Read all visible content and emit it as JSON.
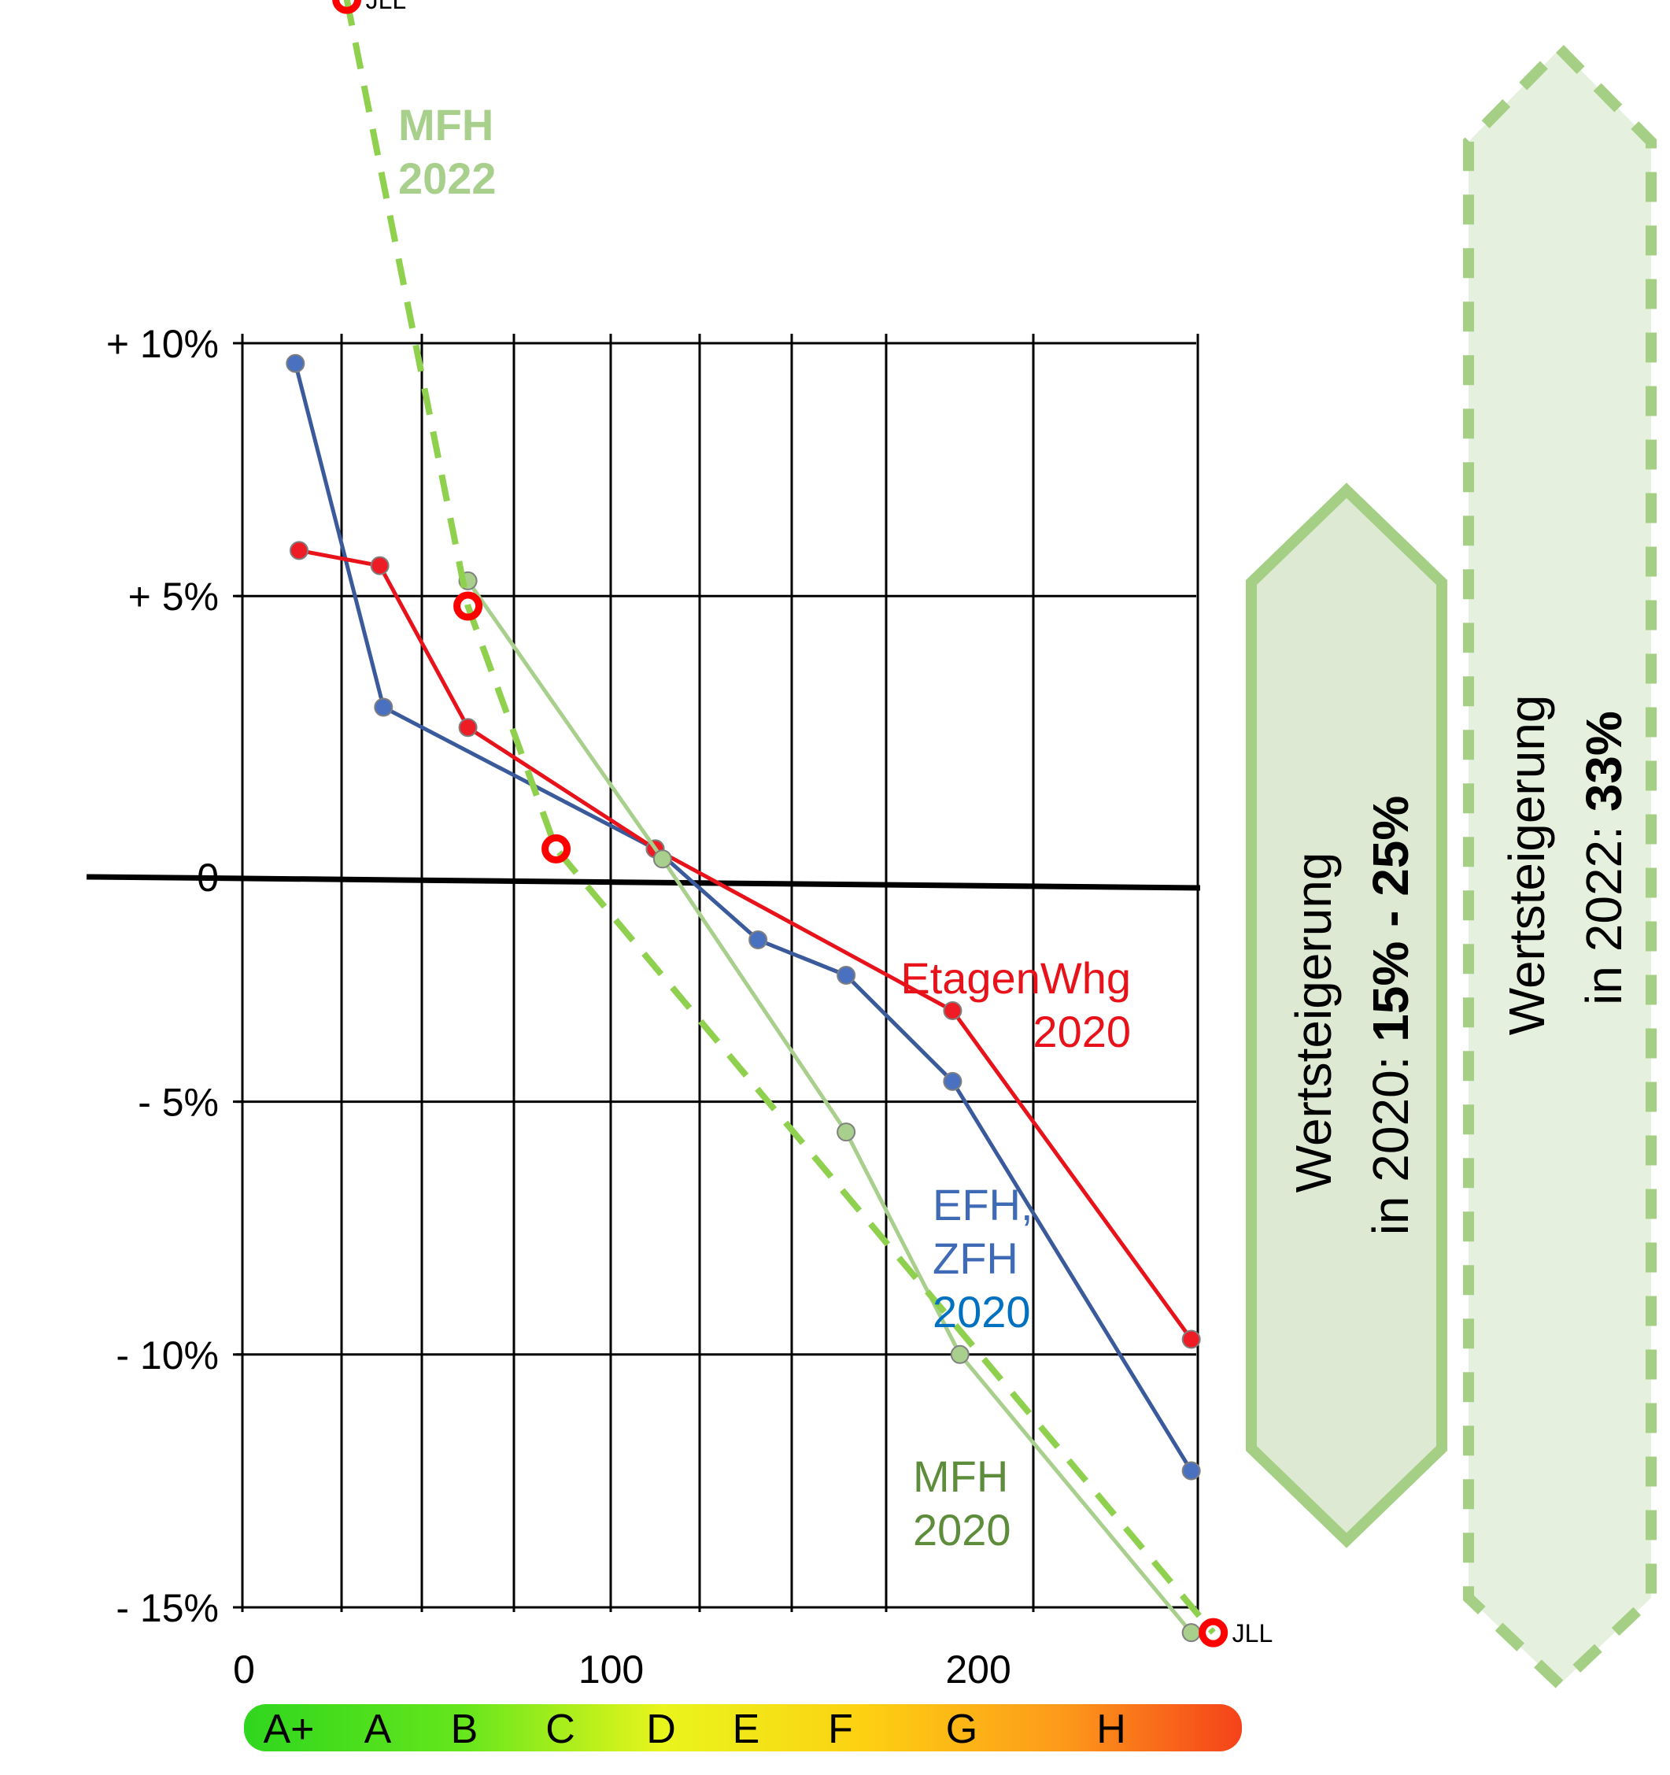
{
  "chart_data": {
    "type": "line",
    "title": "",
    "xlabel": "",
    "ylabel": "",
    "xlim": [
      0,
      260
    ],
    "ylim": [
      -15,
      10
    ],
    "x_ticks": [
      {
        "value": 0,
        "label": "0"
      },
      {
        "value": 100,
        "label": "100"
      },
      {
        "value": 200,
        "label": "200"
      }
    ],
    "y_ticks": [
      {
        "value": 10,
        "label": "+ 10%"
      },
      {
        "value": 5,
        "label": "+ 5%"
      },
      {
        "value": 0,
        "label": "0"
      },
      {
        "value": -5,
        "label": "- 5%"
      },
      {
        "value": -10,
        "label": "- 10%"
      },
      {
        "value": -15,
        "label": "- 15%"
      }
    ],
    "grid": true,
    "energy_classes": [
      "A+",
      "A",
      "B",
      "C",
      "D",
      "E",
      "F",
      "G",
      "H"
    ],
    "series": [
      {
        "name": "EFH, ZFH 2020",
        "label_lines": [
          "EFH,",
          "ZFH",
          "2020"
        ],
        "color": "#3a5a9c",
        "label_color": "#3f6ab5",
        "points": [
          [
            14,
            9.6
          ],
          [
            38,
            2.8
          ],
          [
            112,
            0.0
          ],
          [
            140,
            -1.8
          ],
          [
            164,
            -2.5
          ],
          [
            193,
            -4.6
          ],
          [
            258,
            -12.3
          ]
        ]
      },
      {
        "name": "EtagenWhg 2020",
        "label_lines": [
          "EtagenWhg",
          "2020"
        ],
        "color": "#e8121b",
        "label_color": "#e8121b",
        "points": [
          [
            15,
            5.9
          ],
          [
            37,
            5.6
          ],
          [
            61,
            2.4
          ],
          [
            112,
            0.0
          ],
          [
            193,
            -3.2
          ],
          [
            258,
            -9.7
          ]
        ]
      },
      {
        "name": "MFH 2020",
        "label_lines": [
          "MFH",
          "2020"
        ],
        "color": "#a9cf8d",
        "label_color": "#5d8c3a",
        "points": [
          [
            61,
            5.3
          ],
          [
            114,
            -0.2
          ],
          [
            164,
            -5.6
          ],
          [
            195,
            -10.0
          ],
          [
            258,
            -15.5
          ]
        ]
      },
      {
        "name": "MFH 2022",
        "label_lines": [
          "MFH",
          "2022"
        ],
        "color": "#8fd14f",
        "label_color": "#a9cf8d",
        "dashed": true,
        "points": [
          [
            28,
            16.8
          ],
          [
            61,
            4.8
          ],
          [
            85,
            0.0
          ],
          [
            264,
            -15.5
          ]
        ]
      }
    ],
    "annotations": [
      {
        "text": "JLL",
        "x": 28,
        "y": 16.8
      },
      {
        "text": "JLL",
        "x": 264,
        "y": -15.5
      }
    ],
    "side_badges": [
      {
        "line1": "Wertsteigerung",
        "line2_prefix": "in 2020: ",
        "line2_bold": "15% - 25%",
        "style": "solid"
      },
      {
        "line1": "Wertsteigerung",
        "line2_prefix": "in 2022: ",
        "line2_bold": "33%",
        "style": "dashed"
      }
    ]
  }
}
